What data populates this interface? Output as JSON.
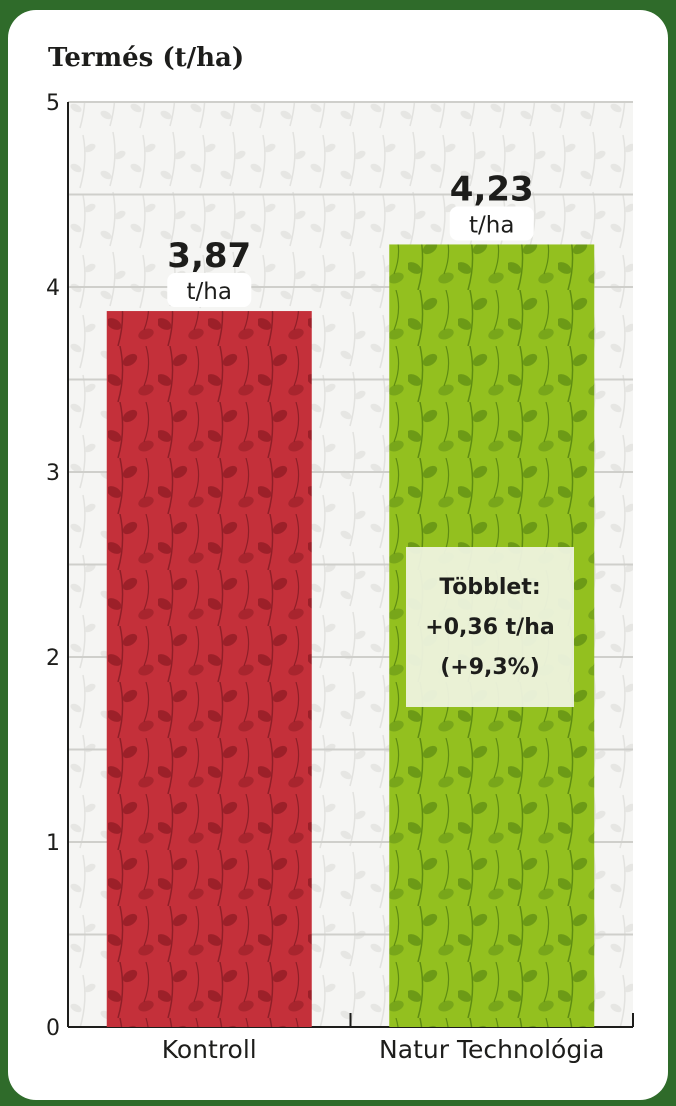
{
  "chart_data": {
    "type": "bar",
    "title": "Termés (t/ha)",
    "categories": [
      "Kontroll",
      "Natur Technológia"
    ],
    "values": [
      3.87,
      4.23
    ],
    "value_labels": [
      "3,87",
      "4,23"
    ],
    "unit_label": "t/ha",
    "ylim": [
      0,
      5
    ],
    "yticks": [
      "0",
      "1",
      "2",
      "3",
      "4",
      "5"
    ],
    "grid": true,
    "colors": [
      "#c4303a",
      "#93c01f"
    ],
    "annotation": {
      "lines": [
        "Többlet:",
        "+0,36 t/ha",
        "(+9,3%)"
      ]
    }
  }
}
